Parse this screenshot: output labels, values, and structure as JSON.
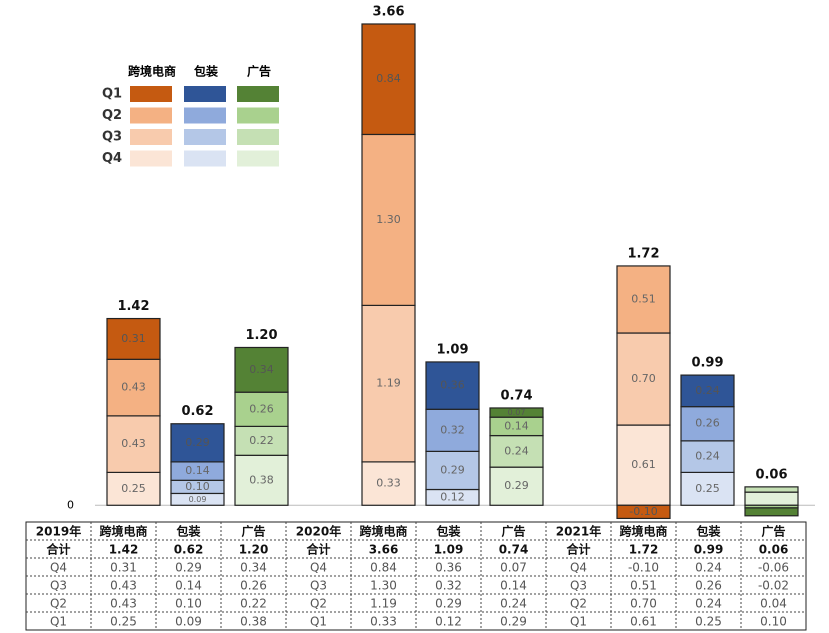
{
  "chart_data": {
    "type": "stacked_bar",
    "series_names": [
      "跨境电商",
      "包装",
      "广告"
    ],
    "quarters": [
      "Q1",
      "Q2",
      "Q3",
      "Q4"
    ],
    "colors": [
      [
        "#fbe5d6",
        "#f8cbad",
        "#f4b183",
        "#c55a11"
      ],
      [
        "#dae3f3",
        "#b4c7e7",
        "#8faadc",
        "#2f5597"
      ],
      [
        "#e2f0d9",
        "#c5e0b4",
        "#a9d18e",
        "#548235"
      ]
    ],
    "ylim": [
      -0.15,
      3.7
    ],
    "yticks": [
      0
    ],
    "groups": [
      {
        "series": [
          {
            "values": [
              0.25,
              0.43,
              0.43,
              0.31
            ],
            "value_labels": [
              "0.25",
              "0.43",
              "0.43",
              "0.31"
            ],
            "total": 1.42,
            "total_label": "1.42"
          },
          {
            "values": [
              0.09,
              0.1,
              0.14,
              0.29
            ],
            "value_labels": [
              "0.09",
              "0.10",
              "0.14",
              "0.29"
            ],
            "total": 0.62,
            "total_label": "0.62"
          },
          {
            "values": [
              0.38,
              0.22,
              0.26,
              0.34
            ],
            "value_labels": [
              "0.38",
              "0.22",
              "0.26",
              "0.34"
            ],
            "total": 1.2,
            "total_label": "1.20"
          }
        ]
      },
      {
        "series": [
          {
            "values": [
              0.33,
              1.19,
              1.3,
              0.84
            ],
            "value_labels": [
              "0.33",
              "1.19",
              "1.30",
              "0.84"
            ],
            "total": 3.66,
            "total_label": "3.66"
          },
          {
            "values": [
              0.12,
              0.29,
              0.32,
              0.36
            ],
            "value_labels": [
              "0.12",
              "0.29",
              "0.32",
              "0.36"
            ],
            "total": 1.09,
            "total_label": "1.09"
          },
          {
            "values": [
              0.29,
              0.24,
              0.14,
              0.07
            ],
            "value_labels": [
              "0.29",
              "0.24",
              "0.14",
              "0.07"
            ],
            "total": 0.74,
            "total_label": "0.74"
          }
        ]
      },
      {
        "series": [
          {
            "values": [
              0.61,
              0.7,
              0.51,
              -0.1
            ],
            "value_labels": [
              "0.61",
              "0.70",
              "0.51",
              "-0.10"
            ],
            "total": 1.72,
            "total_label": "1.72"
          },
          {
            "values": [
              0.25,
              0.24,
              0.26,
              0.24
            ],
            "value_labels": [
              "0.25",
              "0.24",
              "0.26",
              "0.24"
            ],
            "total": 0.99,
            "total_label": "0.99"
          },
          {
            "values": [
              0.1,
              0.04,
              -0.02,
              -0.06
            ],
            "total": 0.06,
            "total_label": "0.06"
          }
        ]
      }
    ]
  },
  "table": {
    "rows": [
      [
        "2019年",
        "跨境电商",
        "包装",
        "广告",
        "2020年",
        "跨境电商",
        "包装",
        "广告",
        "2021年",
        "跨境电商",
        "包装",
        "广告"
      ],
      [
        "合计",
        "1.42",
        "0.62",
        "1.20",
        "合计",
        "3.66",
        "1.09",
        "0.74",
        "合计",
        "1.72",
        "0.99",
        "0.06"
      ],
      [
        "Q4",
        "0.31",
        "0.29",
        "0.34",
        "Q4",
        "0.84",
        "0.36",
        "0.07",
        "Q4",
        "-0.10",
        "0.24",
        "-0.06"
      ],
      [
        "Q3",
        "0.43",
        "0.14",
        "0.26",
        "Q3",
        "1.30",
        "0.32",
        "0.14",
        "Q3",
        "0.51",
        "0.26",
        "-0.02"
      ],
      [
        "Q2",
        "0.43",
        "0.10",
        "0.22",
        "Q2",
        "1.19",
        "0.29",
        "0.24",
        "Q2",
        "0.70",
        "0.24",
        "0.04"
      ],
      [
        "Q1",
        "0.25",
        "0.09",
        "0.38",
        "Q1",
        "0.33",
        "0.12",
        "0.29",
        "Q1",
        "0.61",
        "0.25",
        "0.10"
      ]
    ]
  }
}
